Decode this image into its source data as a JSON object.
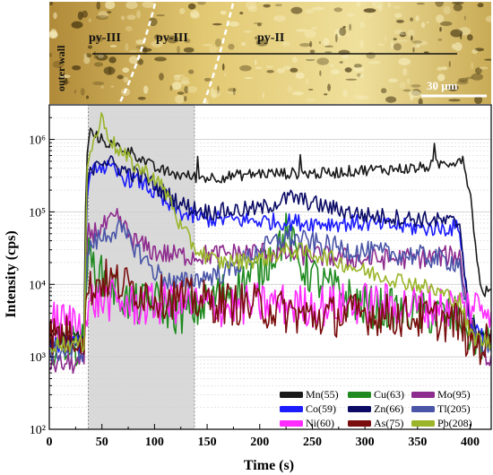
{
  "micrograph": {
    "labels": {
      "outer_wall": "outer wall",
      "py3a": "py-III",
      "py3b": "py-III",
      "py2": "py-II"
    },
    "scale_bar": "30 μm",
    "colors": {
      "base": "#d8b85a",
      "light": "#f2e7a8",
      "dark": "#4a3a12",
      "boundary": "#ffffff"
    }
  },
  "chart_data": {
    "type": "line",
    "title": "",
    "xlabel": "Time (s)",
    "ylabel": "Intensity (cps)",
    "xlim": [
      0,
      420
    ],
    "ylim": [
      100,
      3000000
    ],
    "yscale": "log",
    "x_ticks": [
      "0",
      "50",
      "100",
      "150",
      "200",
      "250",
      "300",
      "350",
      "400"
    ],
    "y_ticks": [
      "10²",
      "10³",
      "10⁴",
      "10⁵",
      "10⁶"
    ],
    "shaded_region": {
      "x_start": 37,
      "x_end": 138,
      "color": "#d9d9d9"
    },
    "grid": true,
    "legend_position": "bottom-right",
    "legend_entries": [
      "Mn(55)",
      "Cu(63)",
      "Mo(95)",
      "Co(59)",
      "Zn(66)",
      "Tl(205)",
      "Ni(60)",
      "As(75)",
      "Pb(208)"
    ],
    "series": [
      {
        "name": "Mn(55)",
        "color": "#1a1a1a",
        "noise": 0.08,
        "spikes": true,
        "points": [
          [
            0,
            2000
          ],
          [
            33,
            2000
          ],
          [
            35,
            400000
          ],
          [
            38,
            1300000
          ],
          [
            45,
            1100000
          ],
          [
            55,
            900000
          ],
          [
            65,
            800000
          ],
          [
            80,
            650000
          ],
          [
            100,
            400000
          ],
          [
            120,
            330000
          ],
          [
            140,
            300000
          ],
          [
            160,
            300000
          ],
          [
            200,
            340000
          ],
          [
            260,
            340000
          ],
          [
            300,
            380000
          ],
          [
            350,
            400000
          ],
          [
            385,
            500000
          ],
          [
            393,
            560000
          ],
          [
            400,
            180000
          ],
          [
            410,
            8000
          ],
          [
            420,
            8000
          ]
        ]
      },
      {
        "name": "Cu(63)",
        "color": "#1f8a1f",
        "noise": 0.3,
        "points": [
          [
            0,
            1500
          ],
          [
            33,
            1500
          ],
          [
            36,
            25000
          ],
          [
            45,
            15000
          ],
          [
            60,
            9000
          ],
          [
            80,
            5000
          ],
          [
            100,
            6000
          ],
          [
            120,
            4000
          ],
          [
            140,
            4500
          ],
          [
            160,
            7000
          ],
          [
            200,
            15000
          ],
          [
            225,
            50000
          ],
          [
            240,
            18000
          ],
          [
            260,
            10000
          ],
          [
            300,
            5000
          ],
          [
            350,
            4000
          ],
          [
            390,
            3500
          ],
          [
            400,
            2000
          ],
          [
            420,
            1500
          ]
        ]
      },
      {
        "name": "Mo(95)",
        "color": "#8e2c8e",
        "noise": 0.15,
        "points": [
          [
            0,
            800
          ],
          [
            33,
            800
          ],
          [
            36,
            50000
          ],
          [
            45,
            55000
          ],
          [
            65,
            80000
          ],
          [
            80,
            40000
          ],
          [
            100,
            28000
          ],
          [
            120,
            25000
          ],
          [
            140,
            25000
          ],
          [
            200,
            28000
          ],
          [
            250,
            25000
          ],
          [
            300,
            22000
          ],
          [
            350,
            23000
          ],
          [
            390,
            25000
          ],
          [
            400,
            3000
          ],
          [
            420,
            800
          ]
        ]
      },
      {
        "name": "Co(59)",
        "color": "#1c1cff",
        "noise": 0.12,
        "points": [
          [
            0,
            1500
          ],
          [
            33,
            1500
          ],
          [
            36,
            200000
          ],
          [
            45,
            450000
          ],
          [
            55,
            400000
          ],
          [
            70,
            300000
          ],
          [
            90,
            250000
          ],
          [
            110,
            130000
          ],
          [
            130,
            90000
          ],
          [
            150,
            80000
          ],
          [
            200,
            75000
          ],
          [
            260,
            70000
          ],
          [
            300,
            70000
          ],
          [
            350,
            60000
          ],
          [
            390,
            60000
          ],
          [
            400,
            3000
          ],
          [
            420,
            1500
          ]
        ]
      },
      {
        "name": "Zn(66)",
        "color": "#0b0b66",
        "noise": 0.12,
        "points": [
          [
            0,
            1500
          ],
          [
            33,
            1500
          ],
          [
            36,
            250000
          ],
          [
            45,
            550000
          ],
          [
            55,
            500000
          ],
          [
            70,
            380000
          ],
          [
            90,
            300000
          ],
          [
            110,
            180000
          ],
          [
            130,
            120000
          ],
          [
            150,
            100000
          ],
          [
            200,
            110000
          ],
          [
            230,
            160000
          ],
          [
            260,
            120000
          ],
          [
            300,
            90000
          ],
          [
            350,
            80000
          ],
          [
            390,
            70000
          ],
          [
            400,
            3000
          ],
          [
            420,
            1500
          ]
        ]
      },
      {
        "name": "Tl(205)",
        "color": "#4a55a8",
        "noise": 0.15,
        "points": [
          [
            0,
            1200
          ],
          [
            33,
            1200
          ],
          [
            36,
            30000
          ],
          [
            45,
            40000
          ],
          [
            65,
            60000
          ],
          [
            80,
            35000
          ],
          [
            100,
            15000
          ],
          [
            120,
            10000
          ],
          [
            140,
            12000
          ],
          [
            170,
            15000
          ],
          [
            200,
            30000
          ],
          [
            225,
            45000
          ],
          [
            260,
            35000
          ],
          [
            300,
            28000
          ],
          [
            350,
            25000
          ],
          [
            390,
            20000
          ],
          [
            400,
            2000
          ],
          [
            420,
            1200
          ]
        ]
      },
      {
        "name": "Ni(60)",
        "color": "#ff2bff",
        "noise": 0.3,
        "points": [
          [
            0,
            3000
          ],
          [
            36,
            3000
          ],
          [
            40,
            6000
          ],
          [
            60,
            6000
          ],
          [
            80,
            5000
          ],
          [
            120,
            5500
          ],
          [
            160,
            5000
          ],
          [
            200,
            5500
          ],
          [
            250,
            5000
          ],
          [
            300,
            5500
          ],
          [
            350,
            5000
          ],
          [
            390,
            5000
          ],
          [
            420,
            5000
          ]
        ]
      },
      {
        "name": "As(75)",
        "color": "#7a0d0d",
        "noise": 0.3,
        "points": [
          [
            0,
            2000
          ],
          [
            33,
            2000
          ],
          [
            36,
            8000
          ],
          [
            50,
            12000
          ],
          [
            70,
            10000
          ],
          [
            100,
            7000
          ],
          [
            140,
            6000
          ],
          [
            200,
            5000
          ],
          [
            250,
            3500
          ],
          [
            300,
            4000
          ],
          [
            350,
            3500
          ],
          [
            390,
            3000
          ],
          [
            400,
            1500
          ],
          [
            420,
            1500
          ]
        ]
      },
      {
        "name": "Pb(208)",
        "color": "#9ab52a",
        "noise": 0.12,
        "points": [
          [
            0,
            1500
          ],
          [
            33,
            1500
          ],
          [
            36,
            500000
          ],
          [
            45,
            1200000
          ],
          [
            50,
            2000000
          ],
          [
            60,
            900000
          ],
          [
            70,
            600000
          ],
          [
            85,
            400000
          ],
          [
            100,
            300000
          ],
          [
            115,
            150000
          ],
          [
            125,
            60000
          ],
          [
            140,
            30000
          ],
          [
            160,
            20000
          ],
          [
            200,
            22000
          ],
          [
            230,
            30000
          ],
          [
            260,
            25000
          ],
          [
            300,
            15000
          ],
          [
            350,
            10000
          ],
          [
            390,
            6000
          ],
          [
            400,
            2000
          ],
          [
            420,
            1500
          ]
        ]
      }
    ]
  }
}
